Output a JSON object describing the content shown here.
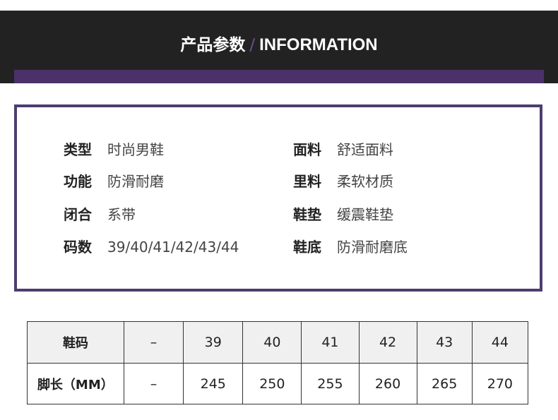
{
  "header": {
    "title_cn": "产品参数",
    "separator": "/",
    "title_en": "INFORMATION",
    "accent": "#4a3169"
  },
  "info": {
    "left": [
      {
        "k": "类型",
        "v": "时尚男鞋"
      },
      {
        "k": "功能",
        "v": "防滑耐磨"
      },
      {
        "k": "闭合",
        "v": "系带"
      },
      {
        "k": "码数",
        "v": "39/40/41/42/43/44"
      }
    ],
    "right": [
      {
        "k": "面料",
        "v": "舒适面料"
      },
      {
        "k": "里料",
        "v": "柔软材质"
      },
      {
        "k": "鞋垫",
        "v": "缓震鞋垫"
      },
      {
        "k": "鞋底",
        "v": "防滑耐磨底"
      }
    ]
  },
  "size_table": {
    "rows": [
      [
        "鞋码",
        "–",
        "39",
        "40",
        "41",
        "42",
        "43",
        "44"
      ],
      [
        "脚长（MM）",
        "–",
        "245",
        "250",
        "255",
        "260",
        "265",
        "270"
      ]
    ]
  }
}
